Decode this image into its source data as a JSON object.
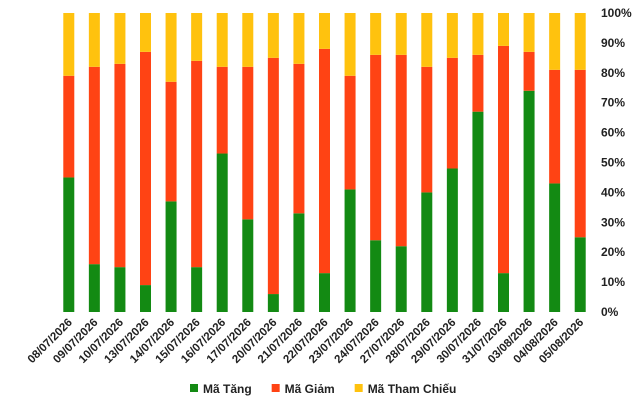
{
  "chart_data": {
    "type": "bar",
    "stacked": true,
    "percent_stacked": true,
    "title": "",
    "xlabel": "",
    "ylabel": "",
    "ylim": [
      0,
      100
    ],
    "y_ticks": [
      "0%",
      "10%",
      "20%",
      "30%",
      "40%",
      "50%",
      "60%",
      "70%",
      "80%",
      "90%",
      "100%"
    ],
    "y_axis_side": "right",
    "grid": false,
    "legend_position": "bottom",
    "categories": [
      "08/07/2026",
      "09/07/2026",
      "10/07/2026",
      "13/07/2026",
      "14/07/2026",
      "15/07/2026",
      "16/07/2026",
      "17/07/2026",
      "20/07/2026",
      "21/07/2026",
      "22/07/2026",
      "23/07/2026",
      "24/07/2026",
      "27/07/2026",
      "28/07/2026",
      "29/07/2026",
      "30/07/2026",
      "31/07/2026",
      "03/08/2026",
      "04/08/2026",
      "05/08/2026"
    ],
    "series": [
      {
        "name": "Mã Tăng",
        "color": "#138a13",
        "values": [
          45,
          16,
          15,
          9,
          37,
          15,
          53,
          31,
          6,
          33,
          13,
          41,
          24,
          22,
          40,
          48,
          67,
          13,
          74,
          43,
          25
        ]
      },
      {
        "name": "Mã Giảm",
        "color": "#ff4314",
        "values": [
          34,
          66,
          68,
          78,
          40,
          69,
          29,
          51,
          79,
          50,
          75,
          38,
          62,
          64,
          42,
          37,
          19,
          76,
          13,
          38,
          56
        ]
      },
      {
        "name": "Mã Tham Chiếu",
        "color": "#ffc20e",
        "values": [
          21,
          18,
          17,
          13,
          23,
          16,
          18,
          18,
          15,
          17,
          12,
          21,
          14,
          14,
          18,
          15,
          14,
          11,
          13,
          19,
          19
        ]
      }
    ]
  }
}
